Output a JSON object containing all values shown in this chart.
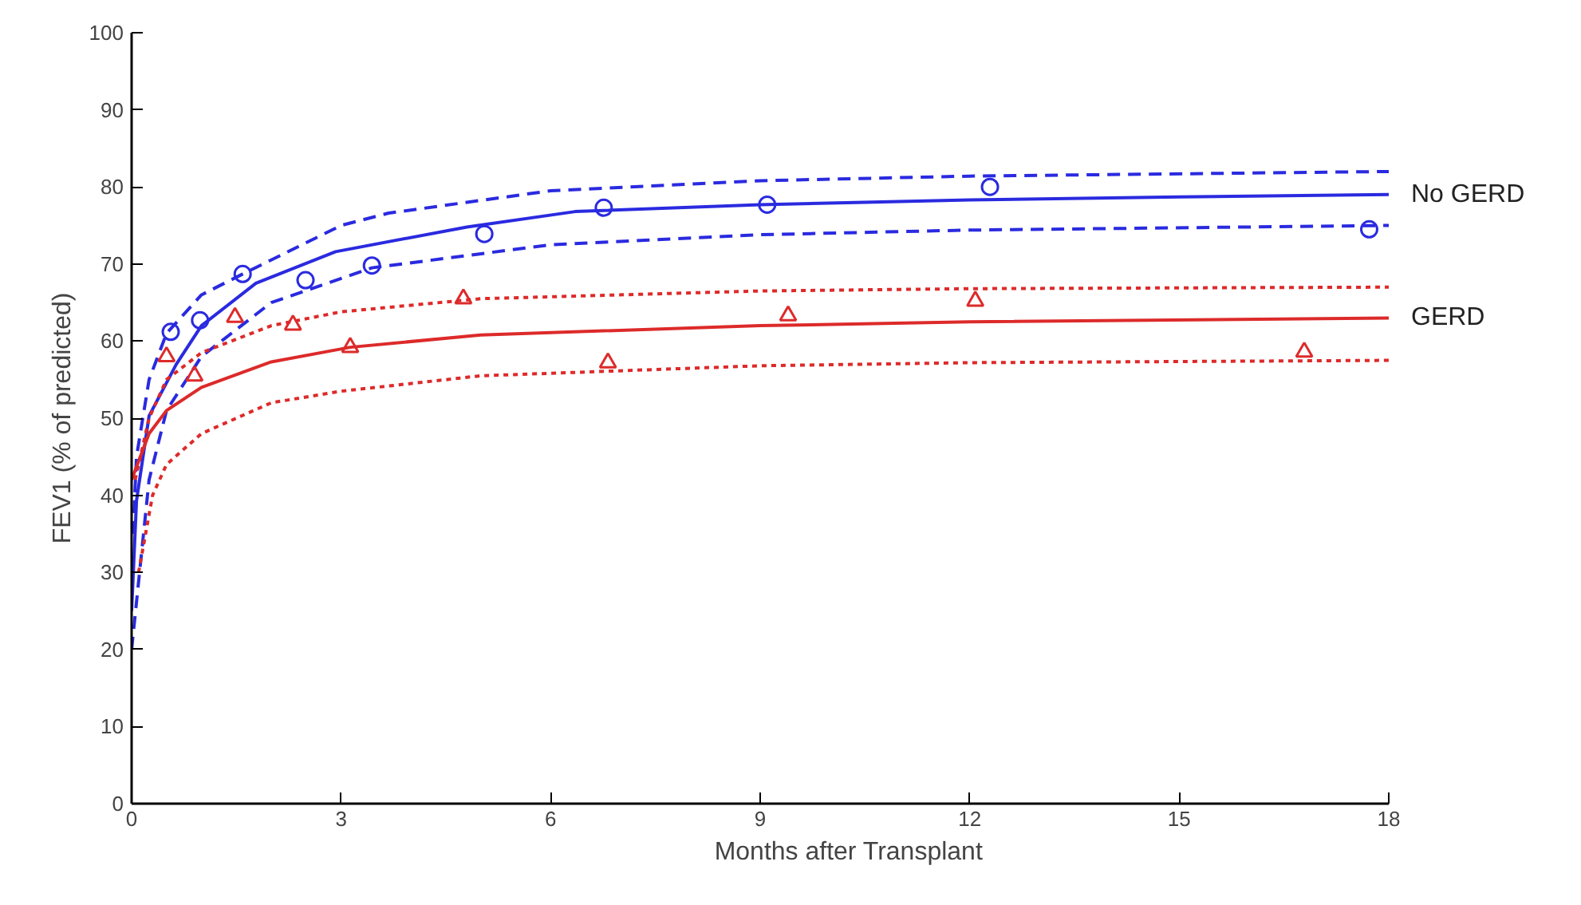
{
  "chart_data": {
    "type": "line",
    "xlabel": "Months after Transplant",
    "ylabel": "FEV1 (% of predicted)",
    "xlim": [
      0,
      18
    ],
    "ylim": [
      0,
      100
    ],
    "xticks": [
      0,
      3,
      6,
      9,
      12,
      15,
      18
    ],
    "yticks": [
      0,
      10,
      20,
      30,
      40,
      50,
      60,
      70,
      80,
      90,
      100
    ],
    "grid": false,
    "series": [
      {
        "name": "No GERD",
        "line_style": "solid",
        "color": "#2a2ae0",
        "x": [
          0,
          0.07,
          0.25,
          0.64,
          1,
          1.78,
          2.92,
          4.8,
          6.35,
          9,
          12,
          15,
          18
        ],
        "values": [
          25,
          39.3,
          50.3,
          57,
          62,
          67.5,
          71.6,
          74.8,
          76.8,
          77.7,
          78.3,
          78.7,
          79
        ]
      },
      {
        "type": "line",
        "line_style": "dashed",
        "color": "#2a2ae0",
        "x": [
          0.02,
          0.07,
          0.25,
          0.5,
          1,
          1.59,
          3,
          3.68,
          6,
          9,
          12,
          18
        ],
        "values": [
          35,
          45,
          55,
          61,
          66,
          68.7,
          75,
          76.6,
          79.5,
          80.8,
          81.4,
          82
        ]
      },
      {
        "type": "line",
        "line_style": "dashed",
        "color": "#2a2ae0",
        "x": [
          0,
          0.25,
          0.5,
          1,
          2,
          3.44,
          6,
          9,
          12,
          18
        ],
        "values": [
          20,
          42,
          51,
          58,
          65,
          69.5,
          72.5,
          73.8,
          74.4,
          75
        ]
      },
      {
        "type": "scatter",
        "marker": "circle",
        "color": "#2a2ae0",
        "x": [
          0.56,
          0.98,
          1.59,
          2.49,
          3.44,
          5.05,
          6.76,
          9.1,
          12.29,
          17.72
        ],
        "values": [
          61.2,
          62.7,
          68.7,
          67.9,
          69.8,
          73.9,
          77.3,
          77.7,
          80,
          74.5
        ]
      },
      {
        "name": "GERD",
        "line_style": "solid",
        "color": "#dd2a2a",
        "x": [
          0,
          0.25,
          0.5,
          1,
          2,
          3.13,
          5,
          9,
          12,
          18
        ],
        "values": [
          42,
          48,
          51,
          54,
          57.3,
          59.2,
          60.8,
          62,
          62.5,
          63
        ]
      },
      {
        "type": "line",
        "line_style": "dotted",
        "color": "#dd2a2a",
        "x": [
          0.05,
          0.25,
          0.5,
          1,
          2,
          3,
          5,
          9,
          12,
          18
        ],
        "values": [
          42,
          50,
          55,
          58.5,
          62,
          63.8,
          65.5,
          66.5,
          66.8,
          67
        ]
      },
      {
        "type": "line",
        "line_style": "dotted",
        "color": "#dd2a2a",
        "x": [
          0.1,
          0.3,
          0.5,
          1,
          2,
          3,
          5,
          9,
          12,
          18
        ],
        "values": [
          30,
          40,
          44,
          48,
          52,
          53.5,
          55.5,
          56.8,
          57.2,
          57.5
        ]
      },
      {
        "type": "scatter",
        "marker": "triangle",
        "color": "#dd2a2a",
        "x": [
          0.5,
          0.9,
          1.48,
          2.31,
          3.13,
          4.75,
          6.82,
          9.4,
          12.08,
          16.79
        ],
        "values": [
          58,
          55.5,
          63.1,
          62.1,
          59.2,
          65.5,
          57.2,
          63.3,
          65.2,
          58.6
        ]
      }
    ]
  }
}
